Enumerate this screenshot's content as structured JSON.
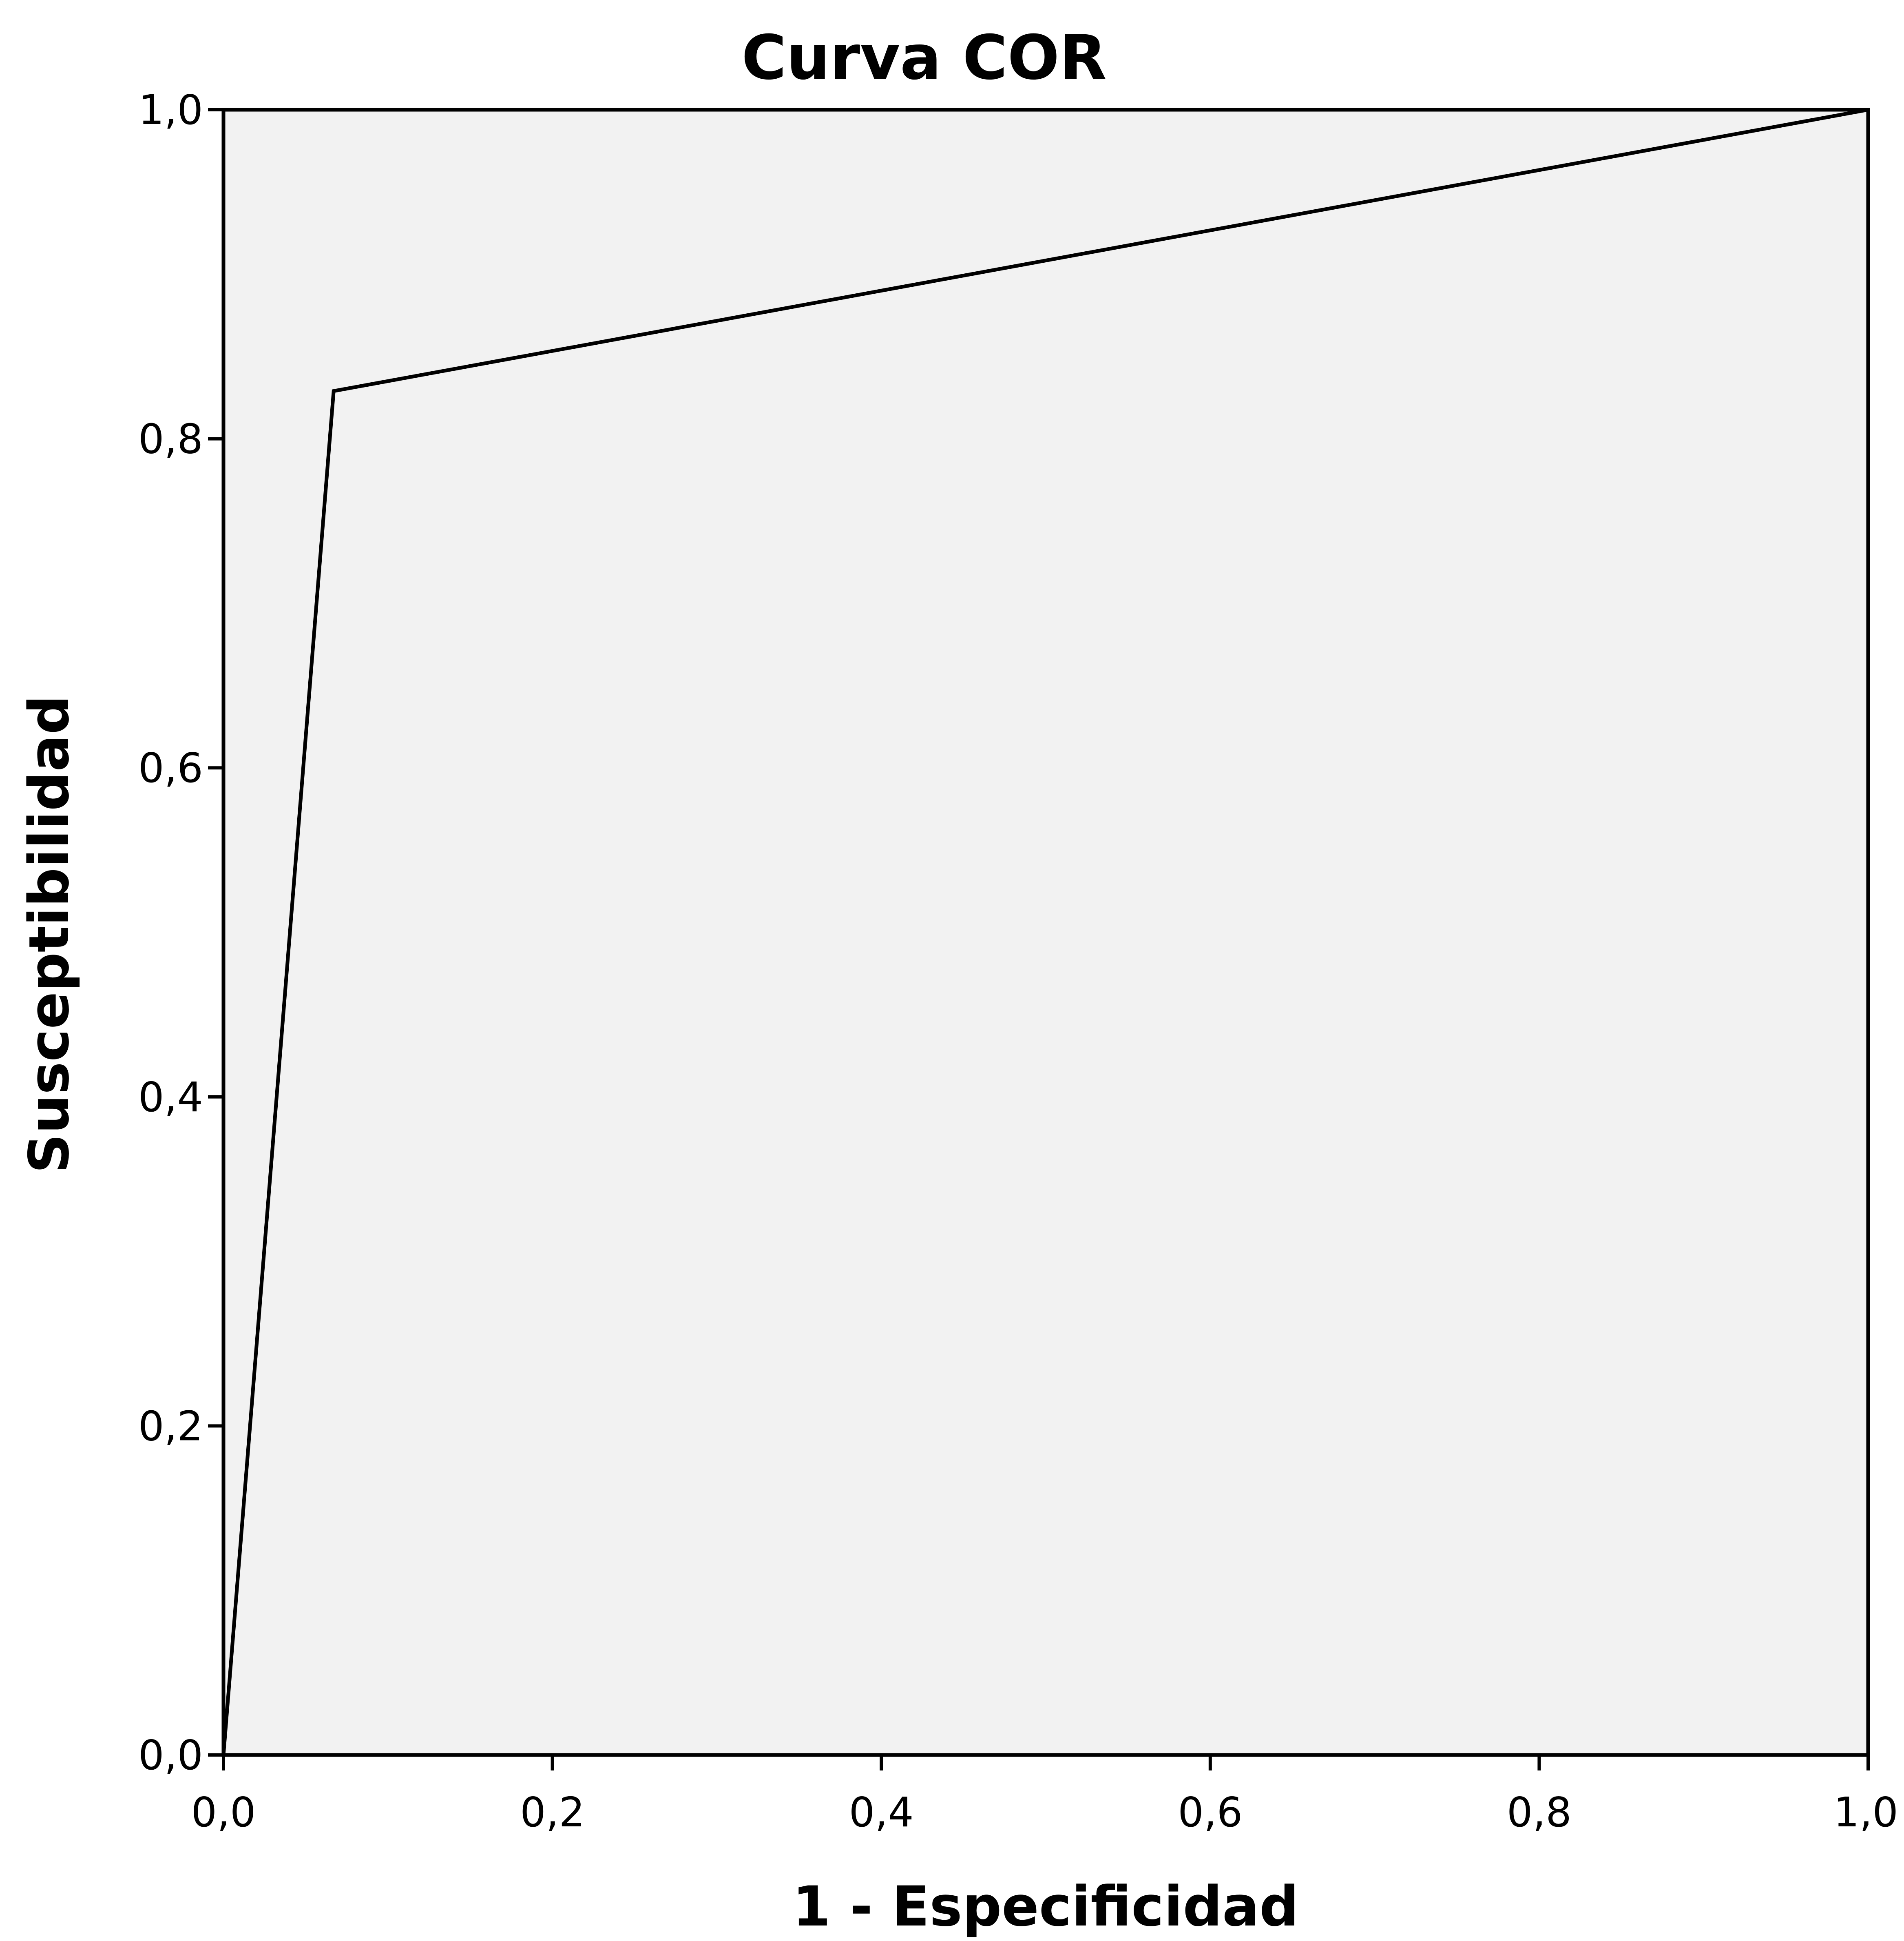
{
  "chart_data": {
    "type": "line",
    "title": "Curva COR",
    "xlabel": "1 - Especificidad",
    "ylabel": "Susceptibilidad",
    "xlim": [
      0,
      1
    ],
    "ylim": [
      0,
      1
    ],
    "x_ticks": [
      0,
      0.2,
      0.4,
      0.6,
      0.8,
      1.0
    ],
    "x_tick_labels": [
      "0,0",
      "0,2",
      "0,4",
      "0,6",
      "0,8",
      "1,0"
    ],
    "y_ticks": [
      0,
      0.2,
      0.4,
      0.6,
      0.8,
      1.0
    ],
    "y_tick_labels": [
      "0,0",
      "0,2",
      "0,4",
      "0,6",
      "0,8",
      "1,0"
    ],
    "grid": false,
    "series": [
      {
        "x": [
          0.0,
          0.067,
          1.0
        ],
        "y": [
          0.0,
          0.829,
          1.0
        ]
      }
    ],
    "colors": {
      "plot_background": "#f2f2f2",
      "line": "#000000",
      "frame": "#000000"
    }
  }
}
